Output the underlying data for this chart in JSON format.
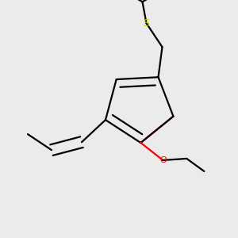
{
  "bg_color": "#ebebeb",
  "line_color": "#000000",
  "o_color": "#ff0000",
  "s_color": "#cccc00",
  "line_width": 1.6,
  "fig_bg": "#ebebeb"
}
